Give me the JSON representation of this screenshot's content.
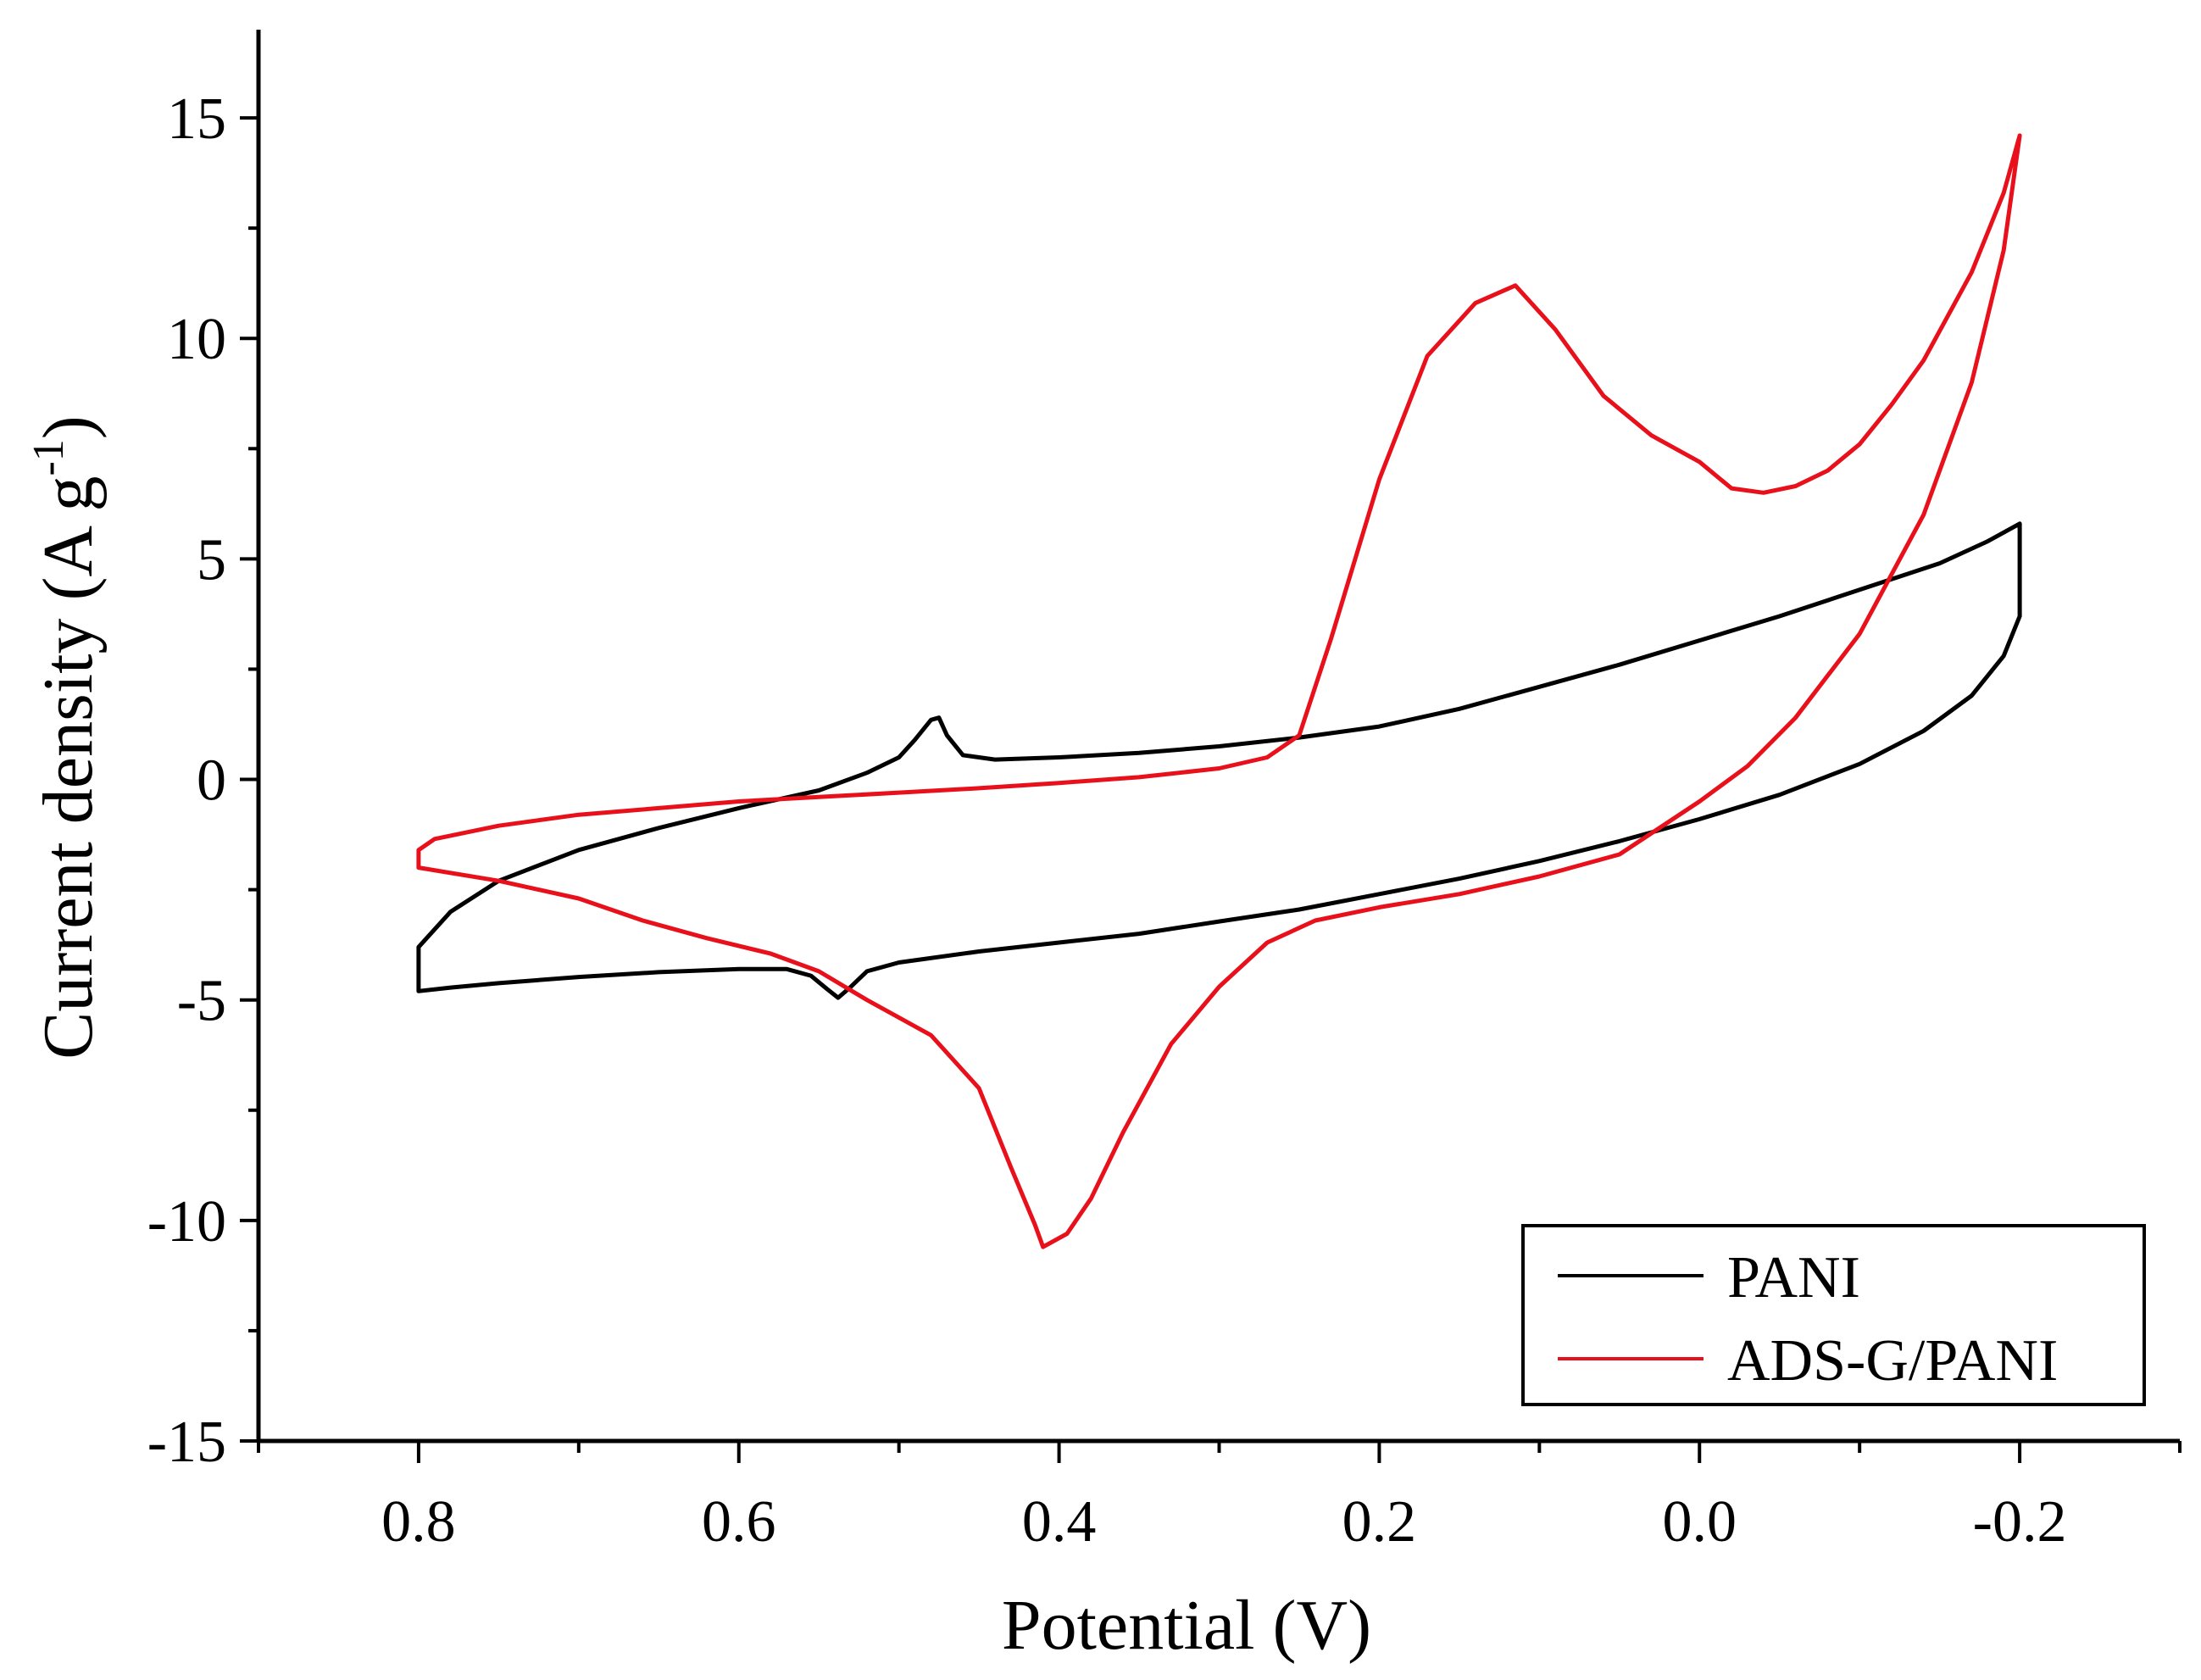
{
  "chart_data": {
    "type": "line",
    "title": "",
    "xlabel": "Potential (V)",
    "ylabel_main": "Current density (A g",
    "ylabel_sup": "-1",
    "ylabel_close": ")",
    "xlim": [
      0.9,
      -0.3
    ],
    "ylim": [
      -15,
      17
    ],
    "x_ticks": [
      0.8,
      0.6,
      0.4,
      0.2,
      0.0,
      -0.2
    ],
    "x_tick_labels": [
      "0.8",
      "0.6",
      "0.4",
      "0.2",
      "0.0",
      "-0.2"
    ],
    "x_minor_ticks": [
      0.9,
      0.7,
      0.5,
      0.3,
      0.1,
      -0.1,
      -0.3
    ],
    "y_ticks": [
      15,
      10,
      5,
      0,
      -5,
      -10,
      -15
    ],
    "y_tick_labels": [
      "15",
      "10",
      "5",
      "0",
      "-5",
      "-10",
      "-15"
    ],
    "y_minor_ticks": [
      12.5,
      7.5,
      2.5,
      -2.5,
      -7.5,
      -12.5
    ],
    "grid": false,
    "legend_position": "bottom-right",
    "series": [
      {
        "name": "PANI",
        "color": "#000000",
        "points": [
          [
            0.8,
            -4.8
          ],
          [
            0.78,
            -4.72
          ],
          [
            0.75,
            -4.62
          ],
          [
            0.7,
            -4.48
          ],
          [
            0.65,
            -4.37
          ],
          [
            0.6,
            -4.3
          ],
          [
            0.57,
            -4.3
          ],
          [
            0.555,
            -4.45
          ],
          [
            0.545,
            -4.75
          ],
          [
            0.538,
            -4.95
          ],
          [
            0.53,
            -4.7
          ],
          [
            0.52,
            -4.35
          ],
          [
            0.5,
            -4.15
          ],
          [
            0.45,
            -3.9
          ],
          [
            0.4,
            -3.7
          ],
          [
            0.35,
            -3.5
          ],
          [
            0.3,
            -3.22
          ],
          [
            0.25,
            -2.95
          ],
          [
            0.2,
            -2.6
          ],
          [
            0.15,
            -2.25
          ],
          [
            0.1,
            -1.85
          ],
          [
            0.05,
            -1.4
          ],
          [
            0.0,
            -0.9
          ],
          [
            -0.05,
            -0.35
          ],
          [
            -0.1,
            0.35
          ],
          [
            -0.14,
            1.1
          ],
          [
            -0.17,
            1.9
          ],
          [
            -0.19,
            2.8
          ],
          [
            -0.2,
            3.7
          ],
          [
            -0.2,
            4.6
          ],
          [
            -0.2,
            5.8
          ],
          [
            -0.18,
            5.4
          ],
          [
            -0.15,
            4.9
          ],
          [
            -0.1,
            4.3
          ],
          [
            -0.05,
            3.7
          ],
          [
            0.0,
            3.15
          ],
          [
            0.05,
            2.6
          ],
          [
            0.1,
            2.1
          ],
          [
            0.15,
            1.6
          ],
          [
            0.2,
            1.2
          ],
          [
            0.25,
            0.95
          ],
          [
            0.3,
            0.75
          ],
          [
            0.35,
            0.6
          ],
          [
            0.4,
            0.5
          ],
          [
            0.44,
            0.45
          ],
          [
            0.46,
            0.55
          ],
          [
            0.47,
            1.0
          ],
          [
            0.475,
            1.4
          ],
          [
            0.48,
            1.35
          ],
          [
            0.49,
            0.9
          ],
          [
            0.5,
            0.5
          ],
          [
            0.52,
            0.15
          ],
          [
            0.55,
            -0.25
          ],
          [
            0.6,
            -0.65
          ],
          [
            0.65,
            -1.1
          ],
          [
            0.7,
            -1.6
          ],
          [
            0.75,
            -2.3
          ],
          [
            0.78,
            -3.0
          ],
          [
            0.8,
            -3.8
          ],
          [
            0.8,
            -4.8
          ]
        ]
      },
      {
        "name": "ADS-G/PANI",
        "color": "#e8101a",
        "points": [
          [
            -0.2,
            14.6
          ],
          [
            -0.19,
            13.3
          ],
          [
            -0.17,
            11.5
          ],
          [
            -0.14,
            9.5
          ],
          [
            -0.12,
            8.5
          ],
          [
            -0.1,
            7.6
          ],
          [
            -0.08,
            7.0
          ],
          [
            -0.06,
            6.65
          ],
          [
            -0.04,
            6.5
          ],
          [
            -0.02,
            6.6
          ],
          [
            0.0,
            7.2
          ],
          [
            0.03,
            7.8
          ],
          [
            0.06,
            8.7
          ],
          [
            0.09,
            10.2
          ],
          [
            0.115,
            11.2
          ],
          [
            0.14,
            10.8
          ],
          [
            0.17,
            9.6
          ],
          [
            0.2,
            6.8
          ],
          [
            0.23,
            3.2
          ],
          [
            0.25,
            1.0
          ],
          [
            0.27,
            0.5
          ],
          [
            0.3,
            0.25
          ],
          [
            0.35,
            0.05
          ],
          [
            0.4,
            -0.08
          ],
          [
            0.45,
            -0.2
          ],
          [
            0.5,
            -0.3
          ],
          [
            0.55,
            -0.4
          ],
          [
            0.6,
            -0.5
          ],
          [
            0.65,
            -0.65
          ],
          [
            0.7,
            -0.8
          ],
          [
            0.75,
            -1.05
          ],
          [
            0.79,
            -1.35
          ],
          [
            0.8,
            -1.6
          ],
          [
            0.8,
            -2.0
          ],
          [
            0.75,
            -2.3
          ],
          [
            0.7,
            -2.7
          ],
          [
            0.66,
            -3.2
          ],
          [
            0.62,
            -3.6
          ],
          [
            0.58,
            -3.95
          ],
          [
            0.55,
            -4.35
          ],
          [
            0.52,
            -5.0
          ],
          [
            0.48,
            -5.8
          ],
          [
            0.45,
            -7.0
          ],
          [
            0.43,
            -8.8
          ],
          [
            0.415,
            -10.1
          ],
          [
            0.41,
            -10.6
          ],
          [
            0.395,
            -10.3
          ],
          [
            0.38,
            -9.5
          ],
          [
            0.36,
            -8.0
          ],
          [
            0.33,
            -6.0
          ],
          [
            0.3,
            -4.7
          ],
          [
            0.27,
            -3.7
          ],
          [
            0.24,
            -3.2
          ],
          [
            0.2,
            -2.9
          ],
          [
            0.15,
            -2.6
          ],
          [
            0.1,
            -2.2
          ],
          [
            0.05,
            -1.7
          ],
          [
            0.0,
            -0.5
          ],
          [
            -0.03,
            0.3
          ],
          [
            -0.06,
            1.4
          ],
          [
            -0.1,
            3.3
          ],
          [
            -0.14,
            6.0
          ],
          [
            -0.17,
            9.0
          ],
          [
            -0.19,
            12.0
          ],
          [
            -0.2,
            14.6
          ]
        ]
      }
    ]
  }
}
